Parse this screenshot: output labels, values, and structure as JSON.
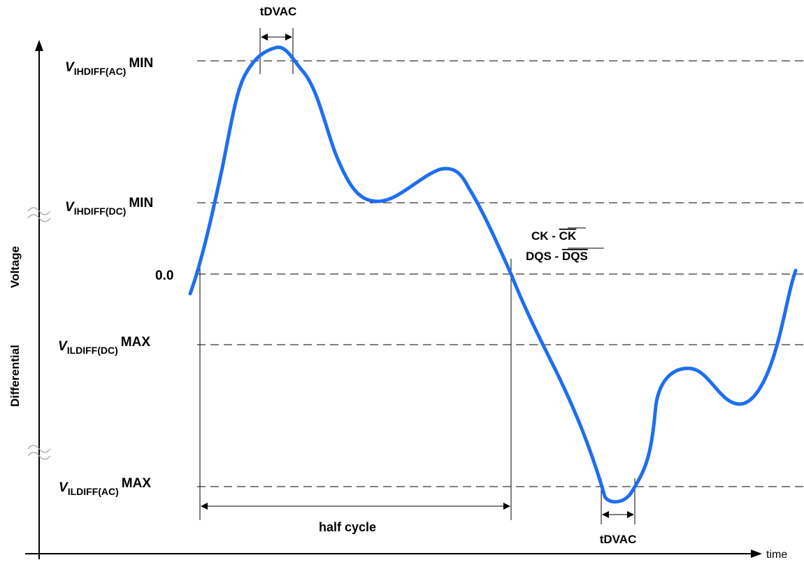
{
  "diagram": {
    "y_axis_label_part1": "Differential",
    "y_axis_label_part2": "Voltage",
    "x_axis_label": "time",
    "levels": [
      {
        "id": "vihdiff-ac",
        "prefix": "V",
        "subscript": "IHDIFF(AC)",
        "suffix": "MIN"
      },
      {
        "id": "vihdiff-dc",
        "prefix": "V",
        "subscript": "IHDIFF(DC)",
        "suffix": "MIN"
      },
      {
        "id": "zero",
        "prefix": "",
        "subscript": "",
        "suffix": "0.0"
      },
      {
        "id": "vildiff-dc",
        "prefix": "V",
        "subscript": "ILDIFF(DC)",
        "suffix": "MAX"
      },
      {
        "id": "vildiff-ac",
        "prefix": "V",
        "subscript": "ILDIFF(AC)",
        "suffix": "MAX"
      }
    ],
    "tdvac_top": "tDVAC",
    "tdvac_bottom": "tDVAC",
    "half_cycle": "half cycle",
    "signal_label_1_prefix": "CK - ",
    "signal_label_1_bar": "CK",
    "signal_label_2_prefix": "DQS - ",
    "signal_label_2_bar": "DQS",
    "colors": {
      "waveform": "#1e6ef0",
      "lines": "#000000",
      "breaks": "#a0a0a0"
    }
  }
}
